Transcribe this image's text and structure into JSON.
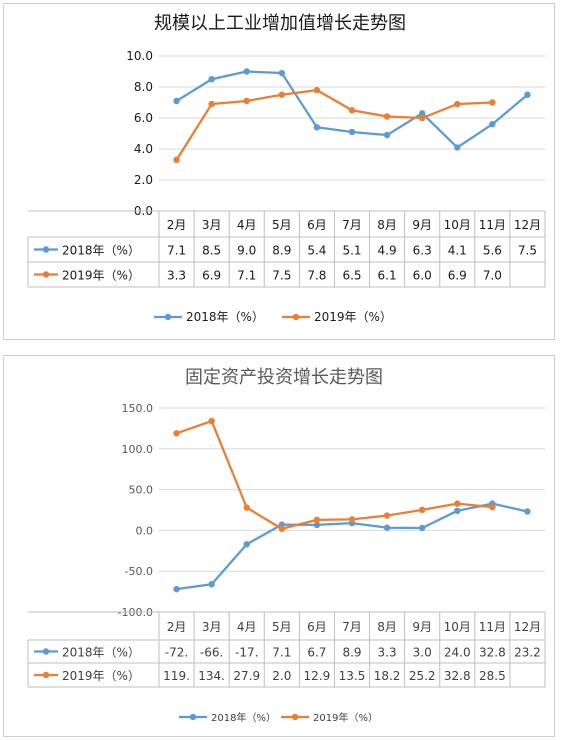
{
  "colors": {
    "s2018": "#5b9bd5",
    "s2019": "#ed7d31"
  },
  "chart_data": [
    {
      "type": "line",
      "title": "规模以上工业增加值增长走势图",
      "categories": [
        "2月",
        "3月",
        "4月",
        "5月",
        "6月",
        "7月",
        "8月",
        "9月",
        "10月",
        "11月",
        "12月"
      ],
      "ylim": [
        0,
        10
      ],
      "yticks": [
        "0.0",
        "2.0",
        "4.0",
        "6.0",
        "8.0",
        "10.0"
      ],
      "grid": true,
      "legend": "bottom",
      "series": [
        {
          "name": "2018年（%）",
          "values": [
            7.1,
            8.5,
            9.0,
            8.9,
            5.4,
            5.1,
            4.9,
            6.3,
            4.1,
            5.6,
            7.5
          ],
          "labels": [
            "7.1",
            "8.5",
            "9.0",
            "8.9",
            "5.4",
            "5.1",
            "4.9",
            "6.3",
            "4.1",
            "5.6",
            "7.5"
          ]
        },
        {
          "name": "2019年（%）",
          "values": [
            3.3,
            6.9,
            7.1,
            7.5,
            7.8,
            6.5,
            6.1,
            6.0,
            6.9,
            7.0,
            null
          ],
          "labels": [
            "3.3",
            "6.9",
            "7.1",
            "7.5",
            "7.8",
            "6.5",
            "6.1",
            "6.0",
            "6.9",
            "7.0",
            ""
          ]
        }
      ]
    },
    {
      "type": "line",
      "title": "固定资产投资增长走势图",
      "categories": [
        "2月",
        "3月",
        "4月",
        "5月",
        "6月",
        "7月",
        "8月",
        "9月",
        "10月",
        "11月",
        "12月"
      ],
      "ylim": [
        -100,
        150
      ],
      "yticks": [
        "-100.0",
        "-50.0",
        "0.0",
        "50.0",
        "100.0",
        "150.0"
      ],
      "grid": true,
      "legend": "bottom",
      "series": [
        {
          "name": "2018年（%）",
          "values": [
            -72.0,
            -66.0,
            -17.0,
            7.1,
            6.7,
            8.9,
            3.3,
            3.0,
            24.0,
            32.8,
            23.2
          ],
          "labels": [
            "-72.",
            "-66.",
            "-17.",
            "7.1",
            "6.7",
            "8.9",
            "3.3",
            "3.0",
            "24.0",
            "32.8",
            "23.2"
          ]
        },
        {
          "name": "2019年（%）",
          "values": [
            119.0,
            134.0,
            27.9,
            2.0,
            12.9,
            13.5,
            18.2,
            25.2,
            32.8,
            28.5,
            null
          ],
          "labels": [
            "119.",
            "134.",
            "27.9",
            "2.0",
            "12.9",
            "13.5",
            "18.2",
            "25.2",
            "32.8",
            "28.5",
            ""
          ]
        }
      ]
    }
  ]
}
